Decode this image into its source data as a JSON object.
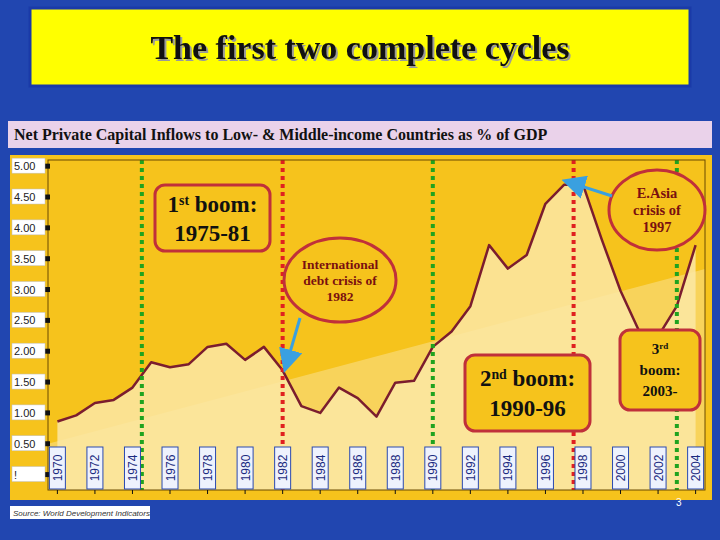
{
  "chart_data": {
    "type": "area",
    "title": "The first two complete cycles",
    "subtitle": "Net Private Capital Inflows to Low- & Middle-income Countries as % of GDP",
    "source": "Source: World Development Indicators",
    "page_number": "3",
    "x": [
      1970,
      1971,
      1972,
      1973,
      1974,
      1975,
      1976,
      1977,
      1978,
      1979,
      1980,
      1981,
      1982,
      1983,
      1984,
      1985,
      1986,
      1987,
      1988,
      1989,
      1990,
      1991,
      1992,
      1993,
      1994,
      1995,
      1996,
      1997,
      1998,
      1999,
      2000,
      2001,
      2002,
      2003,
      2004
    ],
    "values": [
      0.86,
      0.96,
      1.16,
      1.21,
      1.41,
      1.82,
      1.74,
      1.79,
      2.07,
      2.12,
      1.86,
      2.07,
      1.69,
      1.11,
      1.0,
      1.41,
      1.24,
      0.94,
      1.49,
      1.52,
      2.07,
      2.32,
      2.73,
      3.72,
      3.34,
      3.56,
      4.39,
      4.7,
      4.7,
      3.81,
      2.98,
      2.32,
      2.24,
      2.73,
      3.72
    ],
    "color": "#7b1d2e",
    "xlim": [
      1969.5,
      2004.5
    ],
    "xticks": [
      1970,
      1972,
      1974,
      1976,
      1978,
      1980,
      1982,
      1984,
      1986,
      1988,
      1990,
      1992,
      1994,
      1996,
      1998,
      2000,
      2002,
      2004
    ],
    "ylim": [
      -0.25,
      5.1
    ],
    "yticks": [
      {
        "value": 0,
        "label": "!"
      },
      {
        "value": 0.5,
        "label": "0.50"
      },
      {
        "value": 1,
        "label": "1.00"
      },
      {
        "value": 1.5,
        "label": "1.50"
      },
      {
        "value": 2,
        "label": "2.00"
      },
      {
        "value": 2.5,
        "label": "2.50"
      },
      {
        "value": 3,
        "label": "3.00"
      },
      {
        "value": 3.5,
        "label": "3.50"
      },
      {
        "value": 4,
        "label": "4.00"
      },
      {
        "value": 4.5,
        "label": "4.50"
      },
      {
        "value": 5,
        "label": "5.00"
      }
    ],
    "grid": false,
    "vlines": [
      {
        "x": 1974.5,
        "color": "#1fa31f"
      },
      {
        "x": 1982,
        "color": "#e02020"
      },
      {
        "x": 1990,
        "color": "#1fa31f"
      },
      {
        "x": 1997.5,
        "color": "#e02020"
      },
      {
        "x": 2003,
        "color": "#1fa31f"
      }
    ],
    "annotations": [
      {
        "lines": [
          "1st boom:",
          "1975-81"
        ]
      },
      {
        "lines": [
          "International",
          "debt crisis of",
          "1982"
        ],
        "x": 1982
      },
      {
        "lines": [
          "2nd boom:",
          "1990-96"
        ]
      },
      {
        "lines": [
          "E.Asia",
          "crisis of",
          "1997"
        ],
        "x": 1997
      },
      {
        "lines": [
          "3rd",
          "boom:",
          "2003-"
        ]
      }
    ]
  }
}
